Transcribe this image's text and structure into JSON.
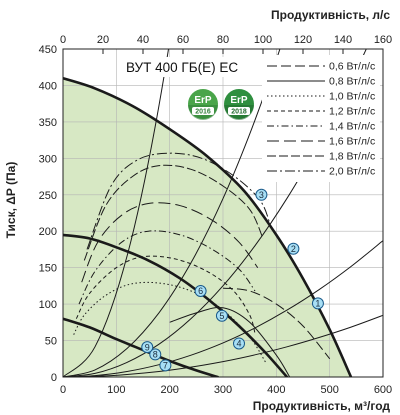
{
  "chart_data": {
    "type": "line",
    "title": "ВУТ 400 ГБ(Е) ЕС",
    "xlabel": "Продуктивність, м³/год",
    "x2label": "Продуктивність, л/с",
    "ylabel": "Тиск, ΔP (Па)",
    "xlim": [
      0,
      600
    ],
    "x2lim": [
      0,
      160
    ],
    "ylim": [
      0,
      450
    ],
    "x_ticks": [
      0,
      100,
      200,
      300,
      400,
      500,
      600
    ],
    "x2_ticks": [
      0,
      20,
      40,
      60,
      80,
      100,
      120,
      140,
      160
    ],
    "y_ticks": [
      0,
      50,
      100,
      150,
      200,
      250,
      300,
      350,
      400,
      450
    ],
    "grid": true,
    "legend_position": "top-right",
    "fan_curves": [
      {
        "x": [
          0,
          60,
          130,
          200,
          270,
          340,
          400,
          450,
          500,
          540
        ],
        "y": [
          410,
          396,
          372,
          340,
          303,
          255,
          195,
          135,
          65,
          0
        ]
      },
      {
        "x": [
          0,
          50,
          100,
          160,
          220,
          280,
          330,
          380,
          420
        ],
        "y": [
          195,
          190,
          178,
          160,
          135,
          102,
          70,
          33,
          0
        ]
      },
      {
        "x": [
          0,
          50,
          100,
          150,
          200,
          250,
          290
        ],
        "y": [
          80,
          68,
          52,
          37,
          22,
          9,
          0
        ]
      }
    ],
    "series": [
      {
        "name": "0,6 Вт/л/с",
        "dash": "10,4",
        "x": [
          300,
          350,
          400,
          450,
          500
        ],
        "y": [
          122,
          118,
          100,
          70,
          25
        ]
      },
      {
        "name": "0,8 Вт/л/с",
        "dash": "",
        "x": [
          200,
          250,
          300,
          350,
          400,
          425
        ],
        "y": [
          75,
          88,
          95,
          75,
          30,
          0
        ]
      },
      {
        "name": "1,0 Вт/л/с",
        "dash": "1.5,2.5",
        "x": [
          20,
          40,
          80,
          130,
          190,
          250,
          300,
          350,
          380
        ],
        "y": [
          58,
          85,
          112,
          128,
          128,
          115,
          92,
          55,
          20
        ]
      },
      {
        "name": "1,2 Вт/л/с",
        "dash": "4,3",
        "x": [
          25,
          50,
          100,
          150,
          210,
          270,
          320,
          350,
          360
        ],
        "y": [
          80,
          115,
          150,
          165,
          162,
          145,
          118,
          85,
          60
        ]
      },
      {
        "name": "1,4 Вт/л/с",
        "dash": "7,3,1.5,3",
        "x": [
          30,
          60,
          110,
          160,
          220,
          280,
          330,
          360
        ],
        "y": [
          100,
          145,
          185,
          200,
          195,
          175,
          148,
          118
        ]
      },
      {
        "name": "1,6 Вт/л/с",
        "dash": "12,5",
        "x": [
          35,
          65,
          110,
          160,
          220,
          280,
          330,
          365
        ],
        "y": [
          130,
          185,
          222,
          238,
          235,
          215,
          185,
          150
        ]
      },
      {
        "name": "1,8 Вт/л/с",
        "dash": "9,3",
        "x": [
          40,
          80,
          130,
          180,
          240,
          300,
          350,
          375
        ],
        "y": [
          160,
          235,
          275,
          290,
          285,
          262,
          230,
          190
        ]
      },
      {
        "name": "2,0 Вт/л/с",
        "dash": "10,3,2,3",
        "x": [
          45,
          90,
          140,
          200,
          260,
          320,
          370,
          390
        ],
        "y": [
          175,
          262,
          298,
          307,
          300,
          276,
          242,
          205
        ]
      }
    ],
    "system_curves": {
      "x": [
        0,
        60,
        120,
        180,
        240,
        300,
        360,
        420,
        480,
        540,
        600
      ],
      "factors": [
        0.0115,
        0.00272,
        0.00139,
        0.00052,
        0.000235
      ]
    },
    "operating_points": [
      {
        "label": "1",
        "x": 478,
        "y": 101
      },
      {
        "label": "2",
        "x": 432,
        "y": 176
      },
      {
        "label": "3",
        "x": 372,
        "y": 250
      },
      {
        "label": "4",
        "x": 330,
        "y": 46
      },
      {
        "label": "5",
        "x": 298,
        "y": 84
      },
      {
        "label": "6",
        "x": 258,
        "y": 118
      },
      {
        "label": "7",
        "x": 192,
        "y": 16
      },
      {
        "label": "8",
        "x": 173,
        "y": 31
      },
      {
        "label": "9",
        "x": 158,
        "y": 41
      }
    ],
    "colors": {
      "fill": "#d7e8c4",
      "grid": "#b5b5b5",
      "frame": "#222222",
      "curve": "#1a1a1a",
      "marker_fill": "#a8dff5",
      "marker_stroke": "#1a5a8a"
    }
  },
  "badges": [
    {
      "top": "ErP",
      "year": "2016",
      "color": "#4aa54a",
      "label_color": "#2f7f37"
    },
    {
      "top": "ErP",
      "year": "2018",
      "color": "#2f8f3f",
      "label_color": "#1f6a2b"
    }
  ]
}
